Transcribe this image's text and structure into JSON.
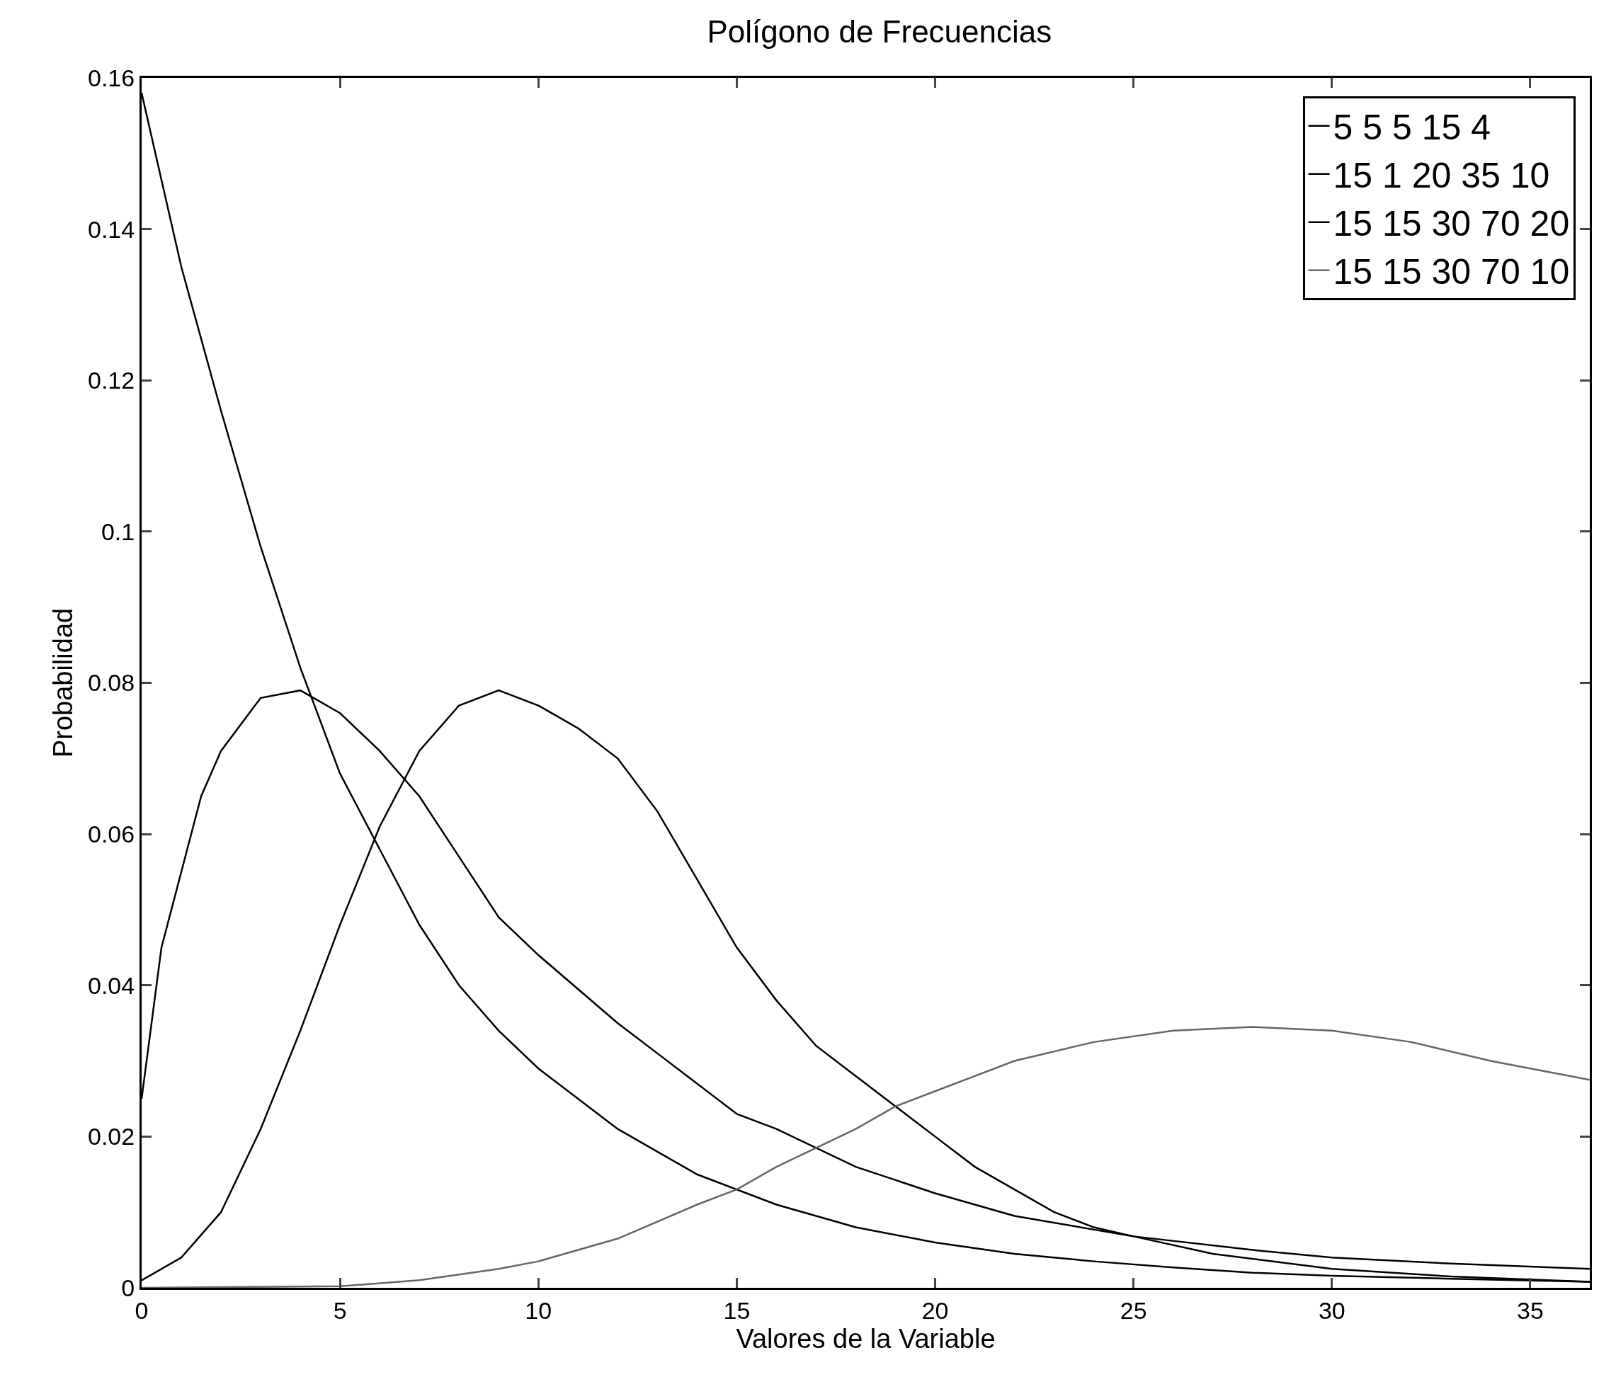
{
  "chart_data": {
    "type": "line",
    "title": "Polígono de Frecuencias",
    "xlabel": "Valores de la Variable",
    "ylabel": "Probabilidad",
    "xlim": [
      0,
      36.5
    ],
    "xticks": [
      0,
      5,
      10,
      15,
      20,
      25,
      30,
      35
    ],
    "ylim": [
      0,
      0.16
    ],
    "yticks": [
      0,
      0.02,
      0.04,
      0.06,
      0.08,
      {
        "value": 0.1,
        "label": "0.1"
      },
      0.12,
      0.14,
      0.16
    ],
    "grid": false,
    "legend": "top right",
    "marker": "none",
    "line_style": "solid",
    "series": [
      {
        "name": "5 5 5 15 4",
        "color": "#000000",
        "x": [
          0,
          1,
          2,
          3,
          4,
          5,
          6,
          7,
          8,
          9,
          10,
          12,
          14,
          16,
          18,
          20,
          22,
          24,
          26,
          28,
          30,
          33,
          36.5
        ],
        "values": [
          0.158,
          0.135,
          0.116,
          0.098,
          0.082,
          0.068,
          0.058,
          0.048,
          0.04,
          0.034,
          0.029,
          0.021,
          0.015,
          0.011,
          0.008,
          0.006,
          0.0045,
          0.0035,
          0.0027,
          0.002,
          0.0016,
          0.0012,
          0.0008
        ]
      },
      {
        "name": "15 1 20 35 10",
        "color": "#000000",
        "x": [
          0,
          0.5,
          1,
          1.5,
          2,
          3,
          4,
          5,
          6,
          7,
          8,
          9,
          10,
          12,
          13,
          15,
          16,
          18,
          20,
          22,
          25,
          28,
          30,
          33,
          36.5
        ],
        "values": [
          0.025,
          0.045,
          0.055,
          0.065,
          0.071,
          0.078,
          0.079,
          0.076,
          0.071,
          0.065,
          0.057,
          0.049,
          0.044,
          0.035,
          0.031,
          0.023,
          0.021,
          0.016,
          0.0125,
          0.0095,
          0.0068,
          0.005,
          0.004,
          0.0032,
          0.0025
        ]
      },
      {
        "name": "15 15 30 70 20",
        "color": "#000000",
        "x": [
          0,
          1,
          2,
          3,
          4,
          5,
          6,
          7,
          8,
          9,
          10,
          11,
          12,
          13,
          14,
          15,
          16,
          17,
          18,
          19,
          20,
          21,
          22,
          23,
          24,
          25,
          27,
          30,
          33,
          36.5
        ],
        "values": [
          0.001,
          0.004,
          0.01,
          0.021,
          0.034,
          0.048,
          0.061,
          0.071,
          0.077,
          0.079,
          0.077,
          0.074,
          0.07,
          0.063,
          0.054,
          0.045,
          0.038,
          0.032,
          0.028,
          0.024,
          0.02,
          0.016,
          0.013,
          0.01,
          0.008,
          0.0068,
          0.0045,
          0.0025,
          0.0015,
          0.0008
        ]
      },
      {
        "name": "15 15 30 70 10",
        "color": "#666666",
        "x": [
          0,
          5,
          7,
          9,
          10,
          12,
          14,
          15,
          16,
          18,
          19,
          20,
          22,
          24,
          26,
          28,
          30,
          32,
          34,
          36.5
        ],
        "values": [
          0,
          0.0002,
          0.001,
          0.0025,
          0.0035,
          0.0065,
          0.011,
          0.013,
          0.016,
          0.021,
          0.024,
          0.026,
          0.03,
          0.0325,
          0.034,
          0.0345,
          0.034,
          0.0325,
          0.03,
          0.0275
        ]
      }
    ]
  }
}
